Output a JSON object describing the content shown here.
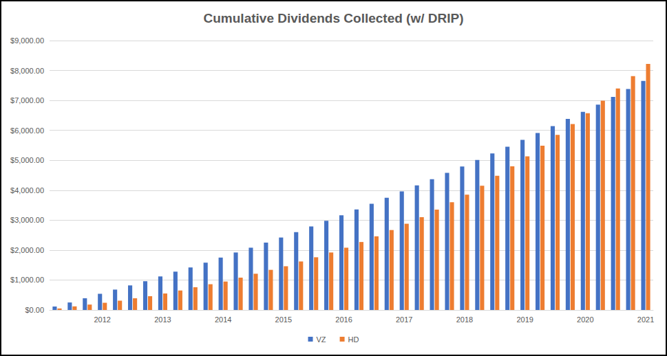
{
  "chart_data": {
    "type": "bar",
    "title": "Cumulative Dividends Collected (w/ DRIP)",
    "categories": [
      null,
      null,
      null,
      "2012",
      null,
      null,
      null,
      "2013",
      null,
      null,
      null,
      "2014",
      null,
      null,
      null,
      "2015",
      null,
      null,
      null,
      "2016",
      null,
      null,
      null,
      "2017",
      null,
      null,
      null,
      "2018",
      null,
      null,
      null,
      "2019",
      null,
      null,
      null,
      "2020",
      null,
      null,
      null,
      "2021"
    ],
    "series": [
      {
        "name": "VZ",
        "color": "#4472c4",
        "values": [
          115,
          250,
          390,
          540,
          680,
          820,
          960,
          1120,
          1280,
          1420,
          1580,
          1750,
          1920,
          2080,
          2250,
          2420,
          2600,
          2790,
          2980,
          3160,
          3360,
          3550,
          3750,
          3960,
          4160,
          4370,
          4580,
          4790,
          5010,
          5230,
          5450,
          5680,
          5910,
          6140,
          6380,
          6620,
          6860,
          7120,
          7380,
          7650
        ]
      },
      {
        "name": "HD",
        "color": "#ed7d31",
        "values": [
          50,
          120,
          180,
          240,
          310,
          390,
          460,
          550,
          650,
          760,
          860,
          950,
          1080,
          1210,
          1340,
          1460,
          1620,
          1760,
          1920,
          2080,
          2270,
          2460,
          2670,
          2880,
          3100,
          3350,
          3600,
          3850,
          4150,
          4480,
          4800,
          5130,
          5490,
          5850,
          6210,
          6570,
          6990,
          7400,
          7810,
          8220
        ]
      }
    ],
    "ylim": [
      0,
      9000
    ],
    "yticks": [
      {
        "value": 0,
        "label": "$0.00"
      },
      {
        "value": 1000,
        "label": "$1,000.00"
      },
      {
        "value": 2000,
        "label": "$2,000.00"
      },
      {
        "value": 3000,
        "label": "$3,000.00"
      },
      {
        "value": 4000,
        "label": "$4,000.00"
      },
      {
        "value": 5000,
        "label": "$5,000.00"
      },
      {
        "value": 6000,
        "label": "$6,000.00"
      },
      {
        "value": 7000,
        "label": "$7,000.00"
      },
      {
        "value": 8000,
        "label": "$8,000.00"
      },
      {
        "value": 9000,
        "label": "$9,000.00"
      }
    ],
    "grid": true,
    "legend": "bottom"
  }
}
